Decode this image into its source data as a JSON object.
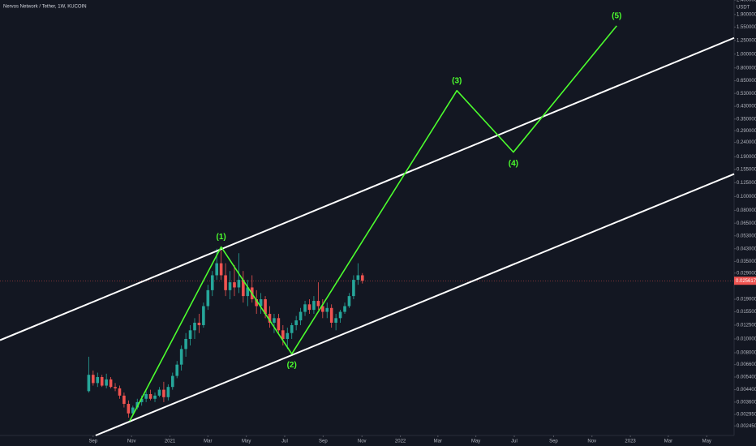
{
  "chart_data": {
    "type": "candlestick",
    "title": "Nervos Network / Tether, 1W, KUCOIN",
    "y_unit": "USDT",
    "log_scale": true,
    "up_color": "#26a69a",
    "down_color": "#ef5350",
    "xlim": [
      -21.1,
      145.2
    ],
    "xticks": [
      {
        "value": 0,
        "label": "Sep"
      },
      {
        "value": 8.7,
        "label": "Nov"
      },
      {
        "value": 17.4,
        "label": "2021"
      },
      {
        "value": 26,
        "label": "Mar"
      },
      {
        "value": 34.7,
        "label": "May"
      },
      {
        "value": 43.4,
        "label": "Jul"
      },
      {
        "value": 52.1,
        "label": "Sep"
      },
      {
        "value": 60.9,
        "label": "Nov"
      },
      {
        "value": 69.6,
        "label": "2022"
      },
      {
        "value": 78.1,
        "label": "Mar"
      },
      {
        "value": 86.7,
        "label": "May"
      },
      {
        "value": 95.4,
        "label": "Jul"
      },
      {
        "value": 104.3,
        "label": "Sep"
      },
      {
        "value": 113,
        "label": "Nov"
      },
      {
        "value": 121.7,
        "label": "2023"
      },
      {
        "value": 130.3,
        "label": "Mar"
      },
      {
        "value": 139,
        "label": "May"
      }
    ],
    "ylim": [
      0.0021,
      2.4
    ],
    "yticks": [
      {
        "value": 2.4,
        "label": "2.400000"
      },
      {
        "value": 1.9,
        "label": "1.900000"
      },
      {
        "value": 1.55,
        "label": "1.550000"
      },
      {
        "value": 1.25,
        "label": "1.250000"
      },
      {
        "value": 1,
        "label": "1.000000"
      },
      {
        "value": 0.8,
        "label": "0.800000"
      },
      {
        "value": 0.65,
        "label": "0.650000"
      },
      {
        "value": 0.53,
        "label": "0.530000"
      },
      {
        "value": 0.43,
        "label": "0.430000"
      },
      {
        "value": 0.35,
        "label": "0.350000"
      },
      {
        "value": 0.29,
        "label": "0.290000"
      },
      {
        "value": 0.24,
        "label": "0.240000"
      },
      {
        "value": 0.19,
        "label": "0.190000"
      },
      {
        "value": 0.155,
        "label": "0.155000"
      },
      {
        "value": 0.125,
        "label": "0.125000"
      },
      {
        "value": 0.1,
        "label": "0.100000"
      },
      {
        "value": 0.08,
        "label": "0.080000"
      },
      {
        "value": 0.065,
        "label": "0.065000"
      },
      {
        "value": 0.053,
        "label": "0.053000"
      },
      {
        "value": 0.043,
        "label": "0.043000"
      },
      {
        "value": 0.035,
        "label": "0.035000"
      },
      {
        "value": 0.029,
        "label": "0.029000"
      },
      {
        "value": 0.019,
        "label": "0.019000"
      },
      {
        "value": 0.0155,
        "label": "0.015500"
      },
      {
        "value": 0.0125,
        "label": "0.012500"
      },
      {
        "value": 0.01,
        "label": "0.010000"
      },
      {
        "value": 0.008,
        "label": "0.008000"
      },
      {
        "value": 0.0066,
        "label": "0.006600"
      },
      {
        "value": 0.0054,
        "label": "0.005400"
      },
      {
        "value": 0.0044,
        "label": "0.004400"
      },
      {
        "value": 0.0036,
        "label": "0.003600"
      },
      {
        "value": 0.00295,
        "label": "0.002950"
      },
      {
        "value": 0.00245,
        "label": "0.002450"
      }
    ],
    "current_price": {
      "value": 0.025617,
      "label": "0.025617",
      "color": "#ef5350"
    },
    "x": [
      -1,
      0,
      1,
      2,
      3,
      4,
      5,
      6,
      7,
      8,
      9,
      10,
      11,
      12,
      13,
      14,
      15,
      16,
      17,
      18,
      19,
      20,
      21,
      22,
      23,
      24,
      25,
      26,
      27,
      28,
      29,
      30,
      31,
      32,
      33,
      34,
      35,
      36,
      37,
      38,
      39,
      40,
      41,
      42,
      43,
      44,
      45,
      46,
      47,
      48,
      49,
      50,
      51,
      52,
      53,
      54,
      55,
      56,
      57,
      58,
      59,
      60,
      61
    ],
    "open": [
      0.0043,
      0.0056,
      0.0049,
      0.0054,
      0.0047,
      0.0052,
      0.0046,
      0.0045,
      0.004,
      0.0035,
      0.003,
      0.0033,
      0.0036,
      0.0038,
      0.0041,
      0.0038,
      0.004,
      0.0044,
      0.0039,
      0.0046,
      0.0055,
      0.0066,
      0.0085,
      0.01,
      0.0115,
      0.013,
      0.0125,
      0.017,
      0.022,
      0.028,
      0.034,
      0.028,
      0.022,
      0.025,
      0.023,
      0.026,
      0.02,
      0.023,
      0.019,
      0.017,
      0.019,
      0.015,
      0.013,
      0.014,
      0.0115,
      0.01,
      0.011,
      0.0125,
      0.0135,
      0.0155,
      0.0175,
      0.016,
      0.0185,
      0.017,
      0.0155,
      0.0165,
      0.013,
      0.014,
      0.0155,
      0.017,
      0.02,
      0.026,
      0.028
    ],
    "high": [
      0.0075,
      0.006,
      0.0058,
      0.0056,
      0.0057,
      0.0054,
      0.0049,
      0.0047,
      0.0042,
      0.0037,
      0.0034,
      0.0038,
      0.004,
      0.0043,
      0.0044,
      0.0042,
      0.0046,
      0.005,
      0.0048,
      0.0058,
      0.007,
      0.009,
      0.011,
      0.0125,
      0.014,
      0.015,
      0.018,
      0.024,
      0.03,
      0.043,
      0.042,
      0.034,
      0.03,
      0.033,
      0.04,
      0.03,
      0.026,
      0.028,
      0.022,
      0.021,
      0.02,
      0.017,
      0.015,
      0.015,
      0.0125,
      0.012,
      0.013,
      0.0145,
      0.0165,
      0.0185,
      0.019,
      0.02,
      0.025,
      0.019,
      0.018,
      0.0175,
      0.015,
      0.016,
      0.018,
      0.021,
      0.028,
      0.034,
      0.029
    ],
    "low": [
      0.0042,
      0.0047,
      0.0046,
      0.0046,
      0.0045,
      0.0045,
      0.0043,
      0.0038,
      0.0033,
      0.0028,
      0.0029,
      0.0032,
      0.0034,
      0.0036,
      0.0037,
      0.0036,
      0.0039,
      0.0036,
      0.0037,
      0.0044,
      0.0053,
      0.006,
      0.0075,
      0.009,
      0.01,
      0.011,
      0.012,
      0.016,
      0.02,
      0.026,
      0.026,
      0.02,
      0.019,
      0.02,
      0.021,
      0.018,
      0.017,
      0.018,
      0.015,
      0.015,
      0.014,
      0.012,
      0.011,
      0.011,
      0.009,
      0.0085,
      0.01,
      0.0115,
      0.0125,
      0.0145,
      0.015,
      0.015,
      0.016,
      0.014,
      0.014,
      0.012,
      0.0115,
      0.013,
      0.015,
      0.0165,
      0.019,
      0.024,
      0.0245
    ],
    "close": [
      0.0056,
      0.0049,
      0.0054,
      0.0047,
      0.0052,
      0.0046,
      0.0045,
      0.004,
      0.0035,
      0.003,
      0.0033,
      0.0036,
      0.0038,
      0.0041,
      0.0038,
      0.004,
      0.0044,
      0.0039,
      0.0046,
      0.0055,
      0.0066,
      0.0085,
      0.01,
      0.0115,
      0.013,
      0.0125,
      0.017,
      0.022,
      0.028,
      0.034,
      0.028,
      0.022,
      0.025,
      0.023,
      0.026,
      0.02,
      0.023,
      0.019,
      0.017,
      0.019,
      0.015,
      0.013,
      0.014,
      0.0115,
      0.01,
      0.011,
      0.0125,
      0.0135,
      0.0155,
      0.0175,
      0.016,
      0.0185,
      0.017,
      0.0155,
      0.0165,
      0.013,
      0.014,
      0.0155,
      0.017,
      0.02,
      0.026,
      0.028,
      0.0256
    ],
    "channel": [
      {
        "color": "#ffffff",
        "x": [
          -21.1,
          145.2
        ],
        "values": [
          0.0098,
          1.3
        ]
      },
      {
        "color": "#ffffff",
        "x": [
          0.55,
          145.2
        ],
        "values": [
          0.0021,
          0.144
        ]
      }
    ],
    "waves": {
      "color": "#4cff2e",
      "x": [
        8.27,
        29.0,
        45.0,
        82.4,
        95.2,
        118.6
      ],
      "values": [
        0.00265,
        0.0443,
        0.00785,
        0.555,
        0.205,
        1.58
      ],
      "labels": [
        null,
        "(1)",
        "(2)",
        "(3)",
        "(4)",
        "(5)"
      ]
    }
  }
}
